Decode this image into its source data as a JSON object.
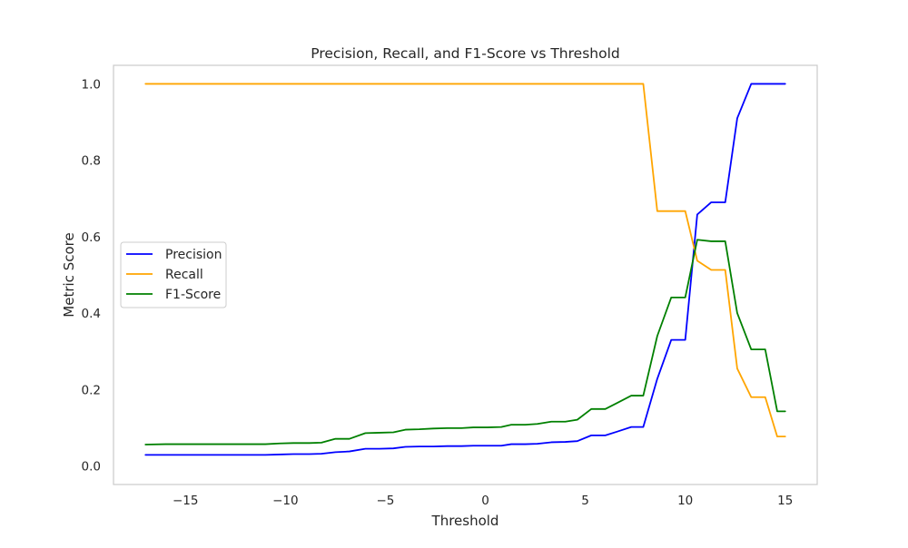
{
  "chart_data": {
    "type": "line",
    "title": "Precision, Recall, and F1-Score vs Threshold",
    "xlabel": "Threshold",
    "ylabel": "Metric Score",
    "xlim": [
      -18.6,
      16.6
    ],
    "ylim": [
      -0.0485,
      1.0485
    ],
    "xticks": [
      -15,
      -10,
      -5,
      0,
      5,
      10,
      15
    ],
    "xtick_labels": [
      "−15",
      "−10",
      "−5",
      "0",
      "5",
      "10",
      "15"
    ],
    "yticks": [
      0.0,
      0.2,
      0.4,
      0.6,
      0.8,
      1.0
    ],
    "ytick_labels": [
      "0.0",
      "0.2",
      "0.4",
      "0.6",
      "0.8",
      "1.0"
    ],
    "grid": false,
    "legend_position": "center-left",
    "series": [
      {
        "name": "Precision",
        "color": "#0000ff",
        "points": [
          [
            -17.0,
            0.029
          ],
          [
            -16.0,
            0.029
          ],
          [
            -15.0,
            0.029
          ],
          [
            -14.0,
            0.029
          ],
          [
            -13.0,
            0.029
          ],
          [
            -12.0,
            0.029
          ],
          [
            -11.0,
            0.029
          ],
          [
            -10.3,
            0.03
          ],
          [
            -9.6,
            0.031
          ],
          [
            -8.8,
            0.031
          ],
          [
            -8.2,
            0.032
          ],
          [
            -7.5,
            0.036
          ],
          [
            -6.8,
            0.038
          ],
          [
            -6.0,
            0.045
          ],
          [
            -5.3,
            0.045
          ],
          [
            -4.6,
            0.046
          ],
          [
            -4.0,
            0.05
          ],
          [
            -3.3,
            0.051
          ],
          [
            -2.6,
            0.051
          ],
          [
            -1.9,
            0.052
          ],
          [
            -1.2,
            0.052
          ],
          [
            -0.6,
            0.053
          ],
          [
            0.1,
            0.053
          ],
          [
            0.8,
            0.053
          ],
          [
            1.3,
            0.057
          ],
          [
            2.0,
            0.057
          ],
          [
            2.6,
            0.058
          ],
          [
            3.3,
            0.062
          ],
          [
            4.0,
            0.063
          ],
          [
            4.6,
            0.065
          ],
          [
            5.3,
            0.08
          ],
          [
            6.0,
            0.08
          ],
          [
            6.6,
            0.09
          ],
          [
            7.3,
            0.102
          ],
          [
            7.9,
            0.102
          ],
          [
            8.6,
            0.228
          ],
          [
            9.3,
            0.33
          ],
          [
            10.0,
            0.33
          ],
          [
            10.6,
            0.658
          ],
          [
            11.3,
            0.69
          ],
          [
            12.0,
            0.69
          ],
          [
            12.6,
            0.91
          ],
          [
            13.3,
            1.0
          ],
          [
            14.0,
            1.0
          ],
          [
            14.6,
            1.0
          ],
          [
            15.0,
            1.0
          ]
        ]
      },
      {
        "name": "Recall",
        "color": "#ffa500",
        "points": [
          [
            -17.0,
            1.0
          ],
          [
            -10.0,
            1.0
          ],
          [
            0.0,
            1.0
          ],
          [
            5.0,
            1.0
          ],
          [
            7.9,
            1.0
          ],
          [
            8.6,
            0.667
          ],
          [
            9.3,
            0.667
          ],
          [
            10.0,
            0.667
          ],
          [
            10.6,
            0.537
          ],
          [
            11.3,
            0.513
          ],
          [
            12.0,
            0.513
          ],
          [
            12.6,
            0.255
          ],
          [
            13.3,
            0.18
          ],
          [
            14.0,
            0.18
          ],
          [
            14.6,
            0.077
          ],
          [
            15.0,
            0.077
          ]
        ]
      },
      {
        "name": "F1-Score",
        "color": "#008000",
        "points": [
          [
            -17.0,
            0.056
          ],
          [
            -16.0,
            0.057
          ],
          [
            -15.0,
            0.057
          ],
          [
            -14.0,
            0.057
          ],
          [
            -13.0,
            0.057
          ],
          [
            -12.0,
            0.057
          ],
          [
            -11.0,
            0.057
          ],
          [
            -10.3,
            0.059
          ],
          [
            -9.6,
            0.06
          ],
          [
            -8.8,
            0.06
          ],
          [
            -8.2,
            0.061
          ],
          [
            -7.5,
            0.071
          ],
          [
            -6.8,
            0.071
          ],
          [
            -6.0,
            0.086
          ],
          [
            -5.3,
            0.087
          ],
          [
            -4.6,
            0.088
          ],
          [
            -4.0,
            0.095
          ],
          [
            -3.3,
            0.096
          ],
          [
            -2.6,
            0.098
          ],
          [
            -1.9,
            0.099
          ],
          [
            -1.2,
            0.099
          ],
          [
            -0.6,
            0.101
          ],
          [
            0.1,
            0.101
          ],
          [
            0.8,
            0.102
          ],
          [
            1.3,
            0.108
          ],
          [
            2.0,
            0.108
          ],
          [
            2.6,
            0.11
          ],
          [
            3.3,
            0.116
          ],
          [
            4.0,
            0.116
          ],
          [
            4.6,
            0.121
          ],
          [
            5.3,
            0.149
          ],
          [
            6.0,
            0.149
          ],
          [
            6.6,
            0.165
          ],
          [
            7.3,
            0.184
          ],
          [
            7.9,
            0.184
          ],
          [
            8.6,
            0.34
          ],
          [
            9.3,
            0.441
          ],
          [
            10.0,
            0.441
          ],
          [
            10.6,
            0.592
          ],
          [
            11.3,
            0.588
          ],
          [
            12.0,
            0.588
          ],
          [
            12.6,
            0.4
          ],
          [
            13.3,
            0.305
          ],
          [
            14.0,
            0.305
          ],
          [
            14.6,
            0.143
          ],
          [
            15.0,
            0.143
          ]
        ]
      }
    ]
  }
}
